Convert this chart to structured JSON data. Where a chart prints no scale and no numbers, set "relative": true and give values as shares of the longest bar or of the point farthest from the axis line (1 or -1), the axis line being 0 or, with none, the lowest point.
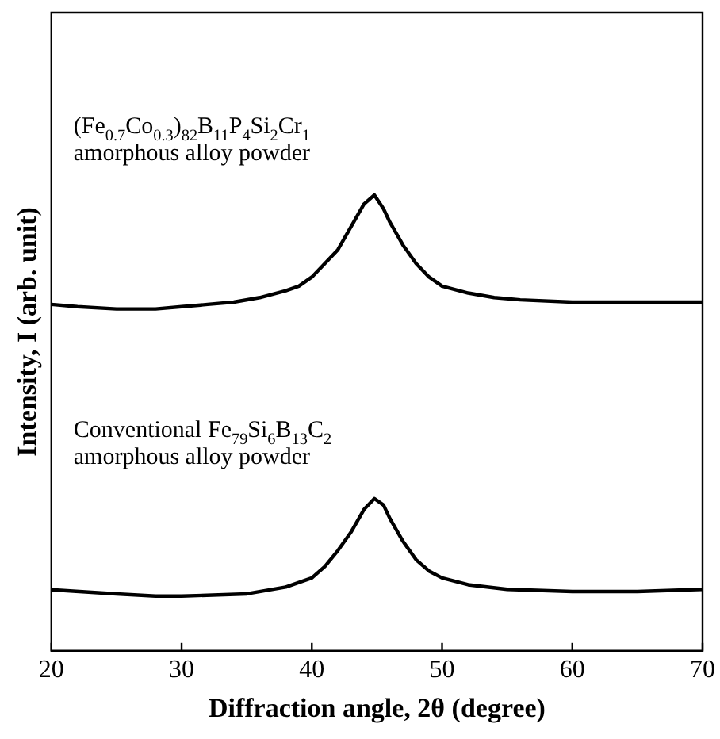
{
  "chart_data": {
    "type": "line",
    "relative": true,
    "xlabel": "Diffraction angle, 2θ (degree)",
    "ylabel": "Intensity, I (arb. unit)",
    "xlim": [
      20,
      70
    ],
    "xticks": [
      20,
      30,
      40,
      50,
      60,
      70
    ],
    "grid": false,
    "legend": false,
    "marker": "none",
    "line_style": "solid",
    "series": [
      {
        "name": "(Fe$_{0.7}$Co$_{0.3}$)$_{82}$B$_{11}$P$_{4}$Si$_{2}$Cr$_{1}$\namorphous alloy powder",
        "color": "#000000",
        "x": [
          20,
          22,
          25,
          28,
          30,
          32,
          34,
          36,
          38,
          39,
          40,
          41,
          42,
          43,
          44,
          44.8,
          45.5,
          46,
          47,
          48,
          49,
          50,
          52,
          54,
          56,
          60,
          65,
          70
        ],
        "values": [
          0.76,
          0.755,
          0.75,
          0.75,
          0.755,
          0.76,
          0.765,
          0.775,
          0.79,
          0.8,
          0.82,
          0.85,
          0.88,
          0.93,
          0.98,
          1.0,
          0.97,
          0.94,
          0.89,
          0.85,
          0.82,
          0.8,
          0.785,
          0.775,
          0.77,
          0.765,
          0.765,
          0.765
        ]
      },
      {
        "name": "Conventional Fe$_{79}$Si$_{6}$B$_{13}$C$_{2}$\namorphous alloy powder",
        "color": "#000000",
        "x": [
          20,
          25,
          28,
          30,
          35,
          38,
          40,
          41,
          42,
          43,
          44,
          44.8,
          45.5,
          46,
          47,
          48,
          49,
          50,
          52,
          55,
          60,
          65,
          70
        ],
        "values": [
          0.134,
          0.125,
          0.12,
          0.12,
          0.125,
          0.14,
          0.16,
          0.185,
          0.22,
          0.26,
          0.31,
          0.334,
          0.32,
          0.29,
          0.24,
          0.2,
          0.175,
          0.16,
          0.145,
          0.135,
          0.13,
          0.13,
          0.135
        ]
      }
    ]
  }
}
